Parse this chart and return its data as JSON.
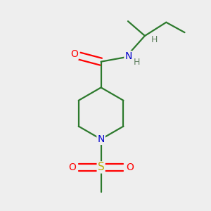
{
  "bg_color": "#eeeeee",
  "bond_color": "#2d7a2d",
  "atom_colors": {
    "O": "#ff0000",
    "N": "#0000cc",
    "S": "#bbaa00",
    "H": "#608060"
  },
  "figsize": [
    3.0,
    3.0
  ],
  "dpi": 100,
  "lw": 1.6
}
